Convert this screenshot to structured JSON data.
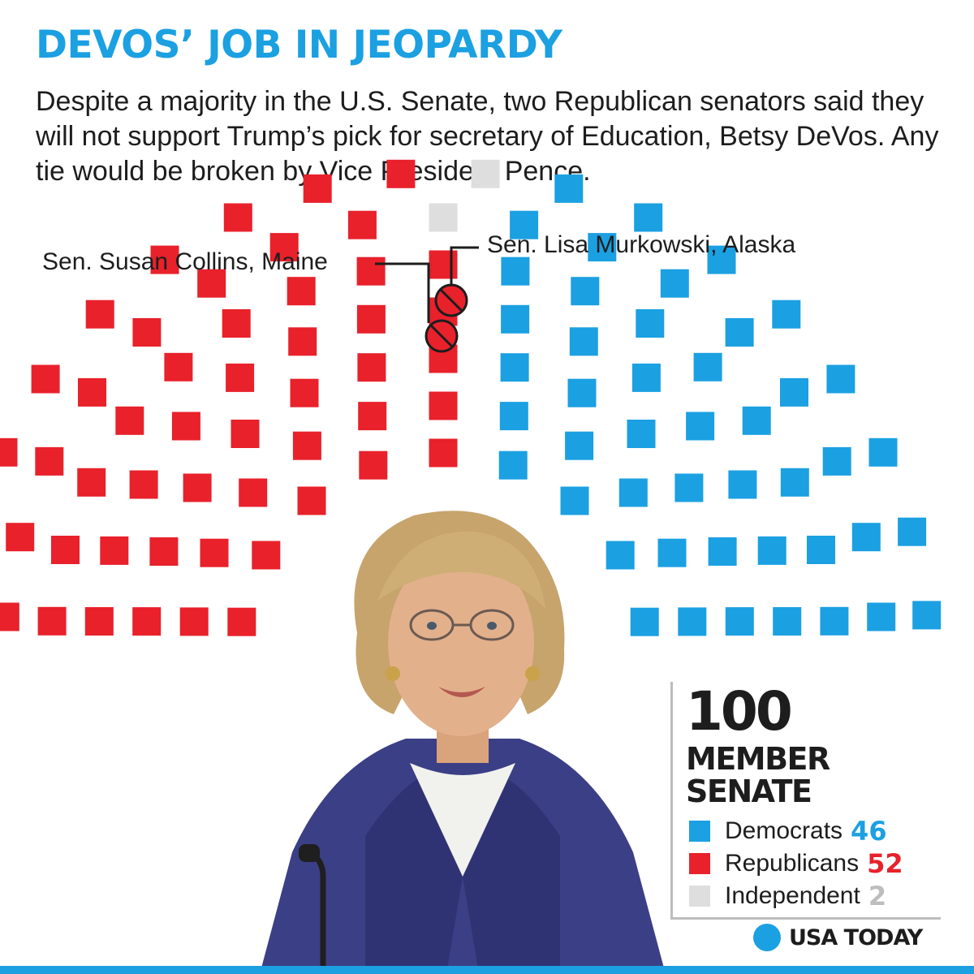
{
  "headline": "DEVOS’ JOB IN JEOPARDY",
  "deck": "Despite a majority in the U.S. Senate, two Republican senators said they will not support Trump’s pick for secretary of Education, Betsy DeVos. Any tie would be broken by Vice President Pence.",
  "callouts": {
    "collins": "Sen. Susan Collins, Maine",
    "murkowski": "Sen. Lisa Murkowski, Alaska"
  },
  "colors": {
    "democrat": "#1ba0e2",
    "republican": "#e8212b",
    "independent": "#dedede",
    "text": "#1d1d1d"
  },
  "legend": {
    "total": "100",
    "line1": "MEMBER",
    "line2": "SENATE",
    "items": [
      {
        "name": "Democrats",
        "count": "46"
      },
      {
        "name": "Republicans",
        "count": "52"
      },
      {
        "name": "Independent",
        "count": "2"
      }
    ]
  },
  "brand": "USA TODAY",
  "chart_data": {
    "type": "parliament",
    "total_seats": 100,
    "series": [
      {
        "name": "Democrats",
        "value": 46
      },
      {
        "name": "Republicans",
        "value": 52
      },
      {
        "name": "Independent",
        "value": 2
      }
    ],
    "opposing_republicans": [
      "Sen. Susan Collins, Maine",
      "Sen. Lisa Murkowski, Alaska"
    ]
  }
}
